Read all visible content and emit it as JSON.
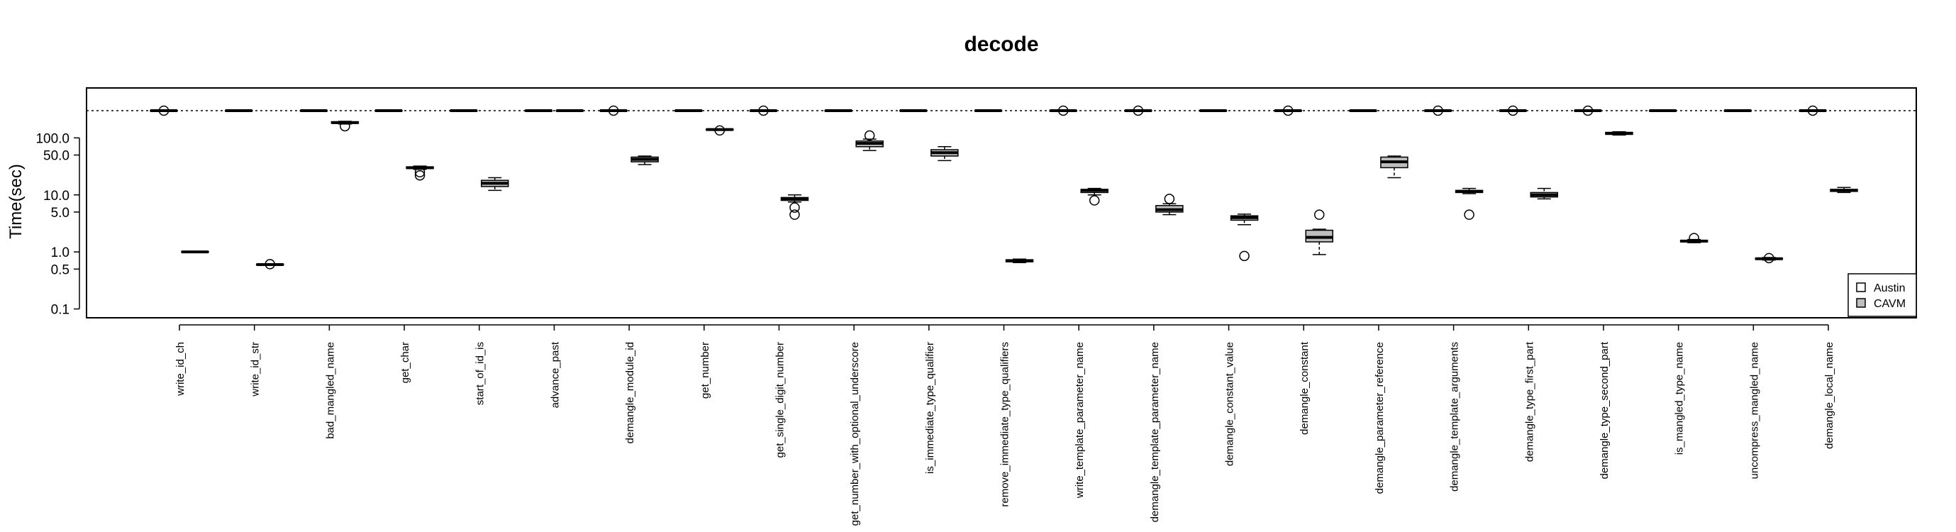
{
  "chart_data": {
    "type": "box",
    "title": "decode",
    "xlabel": "",
    "ylabel": "Time(sec)",
    "y_scale": "log",
    "ylim": [
      0.07,
      750
    ],
    "y_ticks": [
      {
        "value": 0.1,
        "label": "0.1"
      },
      {
        "value": 0.5,
        "label": "0.5"
      },
      {
        "value": 1.0,
        "label": "1.0"
      },
      {
        "value": 5.0,
        "label": "5.0"
      },
      {
        "value": 10.0,
        "label": "10.0"
      },
      {
        "value": 50.0,
        "label": "50.0"
      },
      {
        "value": 100.0,
        "label": "100.0"
      }
    ],
    "timeout_line": 300,
    "legend": {
      "position": "bottom-right",
      "entries": [
        {
          "label": "Austin",
          "fill": "#ffffff"
        },
        {
          "label": "CAVM",
          "fill": "#bebebe"
        }
      ]
    },
    "categories": [
      {
        "name": "write_id_ch",
        "austin": {
          "min": 300,
          "q1": 300,
          "med": 300,
          "q3": 300,
          "max": 300,
          "out": [
            300
          ]
        },
        "cavm": {
          "min": 0.98,
          "q1": 0.99,
          "med": 1.0,
          "q3": 1.01,
          "max": 1.02,
          "out": []
        }
      },
      {
        "name": "write_id_str",
        "austin": {
          "min": 300,
          "q1": 300,
          "med": 300,
          "q3": 300,
          "max": 300,
          "out": []
        },
        "cavm": {
          "min": 0.58,
          "q1": 0.59,
          "med": 0.6,
          "q3": 0.61,
          "max": 0.62,
          "out": [
            0.61
          ]
        }
      },
      {
        "name": "bad_mangled_name",
        "austin": {
          "min": 300,
          "q1": 300,
          "med": 300,
          "q3": 300,
          "max": 300,
          "out": []
        },
        "cavm": {
          "min": 175,
          "q1": 180,
          "med": 185,
          "q3": 192,
          "max": 195,
          "out": [
            160
          ]
        }
      },
      {
        "name": "get_char",
        "austin": {
          "min": 300,
          "q1": 300,
          "med": 300,
          "q3": 300,
          "max": 300,
          "out": []
        },
        "cavm": {
          "min": 28,
          "q1": 29,
          "med": 30,
          "q3": 31,
          "max": 32,
          "out": [
            22,
            25
          ]
        }
      },
      {
        "name": "start_of_id_is",
        "austin": {
          "min": 300,
          "q1": 300,
          "med": 300,
          "q3": 300,
          "max": 300,
          "out": []
        },
        "cavm": {
          "min": 12,
          "q1": 14,
          "med": 16,
          "q3": 18,
          "max": 20,
          "out": []
        }
      },
      {
        "name": "advance_past",
        "austin": {
          "min": 300,
          "q1": 300,
          "med": 300,
          "q3": 300,
          "max": 300,
          "out": []
        },
        "cavm": {
          "min": 300,
          "q1": 300,
          "med": 300,
          "q3": 300,
          "max": 300,
          "out": []
        }
      },
      {
        "name": "demangle_module_id",
        "austin": {
          "min": 300,
          "q1": 300,
          "med": 300,
          "q3": 300,
          "max": 300,
          "out": [
            300
          ]
        },
        "cavm": {
          "min": 34,
          "q1": 38,
          "med": 42,
          "q3": 46,
          "max": 48,
          "out": []
        }
      },
      {
        "name": "get_number",
        "austin": {
          "min": 300,
          "q1": 300,
          "med": 300,
          "q3": 300,
          "max": 300,
          "out": []
        },
        "cavm": {
          "min": 135,
          "q1": 137,
          "med": 140,
          "q3": 142,
          "max": 143,
          "out": [
            135
          ]
        }
      },
      {
        "name": "get_single_digit_number",
        "austin": {
          "min": 300,
          "q1": 300,
          "med": 300,
          "q3": 300,
          "max": 300,
          "out": [
            300
          ]
        },
        "cavm": {
          "min": 7.5,
          "q1": 8.0,
          "med": 8.5,
          "q3": 9.0,
          "max": 10.0,
          "out": [
            4.5,
            6.0
          ]
        }
      },
      {
        "name": "get_number_with_optional_underscore",
        "austin": {
          "min": 300,
          "q1": 300,
          "med": 300,
          "q3": 300,
          "max": 300,
          "out": []
        },
        "cavm": {
          "min": 60,
          "q1": 70,
          "med": 80,
          "q3": 88,
          "max": 95,
          "out": [
            110
          ]
        }
      },
      {
        "name": "is_immediate_type_qualifier",
        "austin": {
          "min": 300,
          "q1": 300,
          "med": 300,
          "q3": 300,
          "max": 300,
          "out": []
        },
        "cavm": {
          "min": 40,
          "q1": 48,
          "med": 55,
          "q3": 62,
          "max": 70,
          "out": []
        }
      },
      {
        "name": "remove_immediate_type_qualifiers",
        "austin": {
          "min": 300,
          "q1": 300,
          "med": 300,
          "q3": 300,
          "max": 300,
          "out": []
        },
        "cavm": {
          "min": 0.65,
          "q1": 0.67,
          "med": 0.7,
          "q3": 0.73,
          "max": 0.75,
          "out": []
        }
      },
      {
        "name": "write_template_parameter_name",
        "austin": {
          "min": 300,
          "q1": 300,
          "med": 300,
          "q3": 300,
          "max": 300,
          "out": [
            300
          ]
        },
        "cavm": {
          "min": 10,
          "q1": 11,
          "med": 12,
          "q3": 12.5,
          "max": 13,
          "out": [
            8
          ]
        }
      },
      {
        "name": "demangle_template_parameter_name",
        "austin": {
          "min": 300,
          "q1": 300,
          "med": 300,
          "q3": 300,
          "max": 300,
          "out": [
            300
          ]
        },
        "cavm": {
          "min": 4.5,
          "q1": 5.0,
          "med": 5.5,
          "q3": 6.5,
          "max": 7.0,
          "out": [
            8.5
          ]
        }
      },
      {
        "name": "demangle_constant_value",
        "austin": {
          "min": 300,
          "q1": 300,
          "med": 300,
          "q3": 300,
          "max": 300,
          "out": []
        },
        "cavm": {
          "min": 3.0,
          "q1": 3.6,
          "med": 4.0,
          "q3": 4.3,
          "max": 4.6,
          "out": [
            0.85
          ]
        }
      },
      {
        "name": "demangle_constant",
        "austin": {
          "min": 300,
          "q1": 300,
          "med": 300,
          "q3": 300,
          "max": 300,
          "out": [
            300
          ]
        },
        "cavm": {
          "min": 0.9,
          "q1": 1.5,
          "med": 1.8,
          "q3": 2.4,
          "max": 2.5,
          "out": [
            4.5
          ]
        }
      },
      {
        "name": "demangle_parameter_reference",
        "austin": {
          "min": 300,
          "q1": 300,
          "med": 300,
          "q3": 300,
          "max": 300,
          "out": []
        },
        "cavm": {
          "min": 20,
          "q1": 30,
          "med": 38,
          "q3": 46,
          "max": 48,
          "out": []
        }
      },
      {
        "name": "demangle_template_arguments",
        "austin": {
          "min": 300,
          "q1": 300,
          "med": 300,
          "q3": 300,
          "max": 300,
          "out": [
            300
          ]
        },
        "cavm": {
          "min": 10.5,
          "q1": 11,
          "med": 11.5,
          "q3": 12,
          "max": 13,
          "out": [
            4.5
          ]
        }
      },
      {
        "name": "demangle_type_first_part",
        "austin": {
          "min": 300,
          "q1": 300,
          "med": 300,
          "q3": 300,
          "max": 300,
          "out": [
            300
          ]
        },
        "cavm": {
          "min": 8.5,
          "q1": 9.2,
          "med": 10,
          "q3": 11,
          "max": 13,
          "out": []
        }
      },
      {
        "name": "demangle_type_second_part",
        "austin": {
          "min": 300,
          "q1": 300,
          "med": 300,
          "q3": 300,
          "max": 300,
          "out": [
            300
          ]
        },
        "cavm": {
          "min": 112,
          "q1": 115,
          "med": 120,
          "q3": 125,
          "max": 128,
          "out": []
        }
      },
      {
        "name": "is_mangled_type_name",
        "austin": {
          "min": 300,
          "q1": 300,
          "med": 300,
          "q3": 300,
          "max": 300,
          "out": []
        },
        "cavm": {
          "min": 1.45,
          "q1": 1.5,
          "med": 1.55,
          "q3": 1.6,
          "max": 1.65,
          "out": [
            1.75
          ]
        }
      },
      {
        "name": "uncompress_mangled_name",
        "austin": {
          "min": 300,
          "q1": 300,
          "med": 300,
          "q3": 300,
          "max": 300,
          "out": []
        },
        "cavm": {
          "min": 0.72,
          "q1": 0.74,
          "med": 0.76,
          "q3": 0.78,
          "max": 0.8,
          "out": [
            0.78
          ]
        }
      },
      {
        "name": "demangle_local_name",
        "austin": {
          "min": 300,
          "q1": 300,
          "med": 300,
          "q3": 300,
          "max": 300,
          "out": [
            300
          ]
        },
        "cavm": {
          "min": 11,
          "q1": 11.5,
          "med": 12,
          "q3": 12.5,
          "max": 13.5,
          "out": []
        }
      }
    ]
  }
}
